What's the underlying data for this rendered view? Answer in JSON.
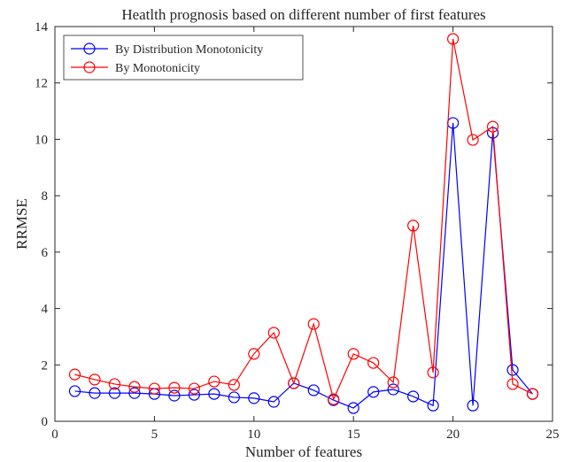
{
  "chart_data": {
    "type": "line",
    "title": "Heatlth prognosis based on different number of first features",
    "xlabel": "Number of features",
    "ylabel": "RRMSE",
    "x": [
      1,
      2,
      3,
      4,
      5,
      6,
      7,
      8,
      9,
      10,
      11,
      12,
      13,
      14,
      15,
      16,
      17,
      18,
      19,
      20,
      21,
      22,
      23,
      24
    ],
    "series": [
      {
        "name": "By Distribution Monotonicity",
        "color": "#0000ff",
        "values": [
          1.07,
          1.0,
          1.0,
          1.0,
          0.97,
          0.91,
          0.94,
          0.97,
          0.85,
          0.82,
          0.69,
          1.35,
          1.1,
          0.75,
          0.47,
          1.04,
          1.13,
          0.88,
          0.56,
          10.58,
          0.56,
          10.23,
          1.82,
          0.97
        ]
      },
      {
        "name": "By Monotonicity",
        "color": "#ff0000",
        "values": [
          1.66,
          1.48,
          1.32,
          1.22,
          1.16,
          1.19,
          1.16,
          1.41,
          1.29,
          2.39,
          3.14,
          1.35,
          3.45,
          0.78,
          2.39,
          2.07,
          1.38,
          6.94,
          1.73,
          13.56,
          9.98,
          10.45,
          1.32,
          0.97
        ]
      }
    ],
    "xlim": [
      0,
      25
    ],
    "xticks": [
      0,
      5,
      10,
      15,
      20,
      25
    ],
    "ylim": [
      0,
      14
    ],
    "yticks": [
      0,
      2,
      4,
      6,
      8,
      10,
      12,
      14
    ],
    "legend": "upper left",
    "marker": "open circle"
  }
}
